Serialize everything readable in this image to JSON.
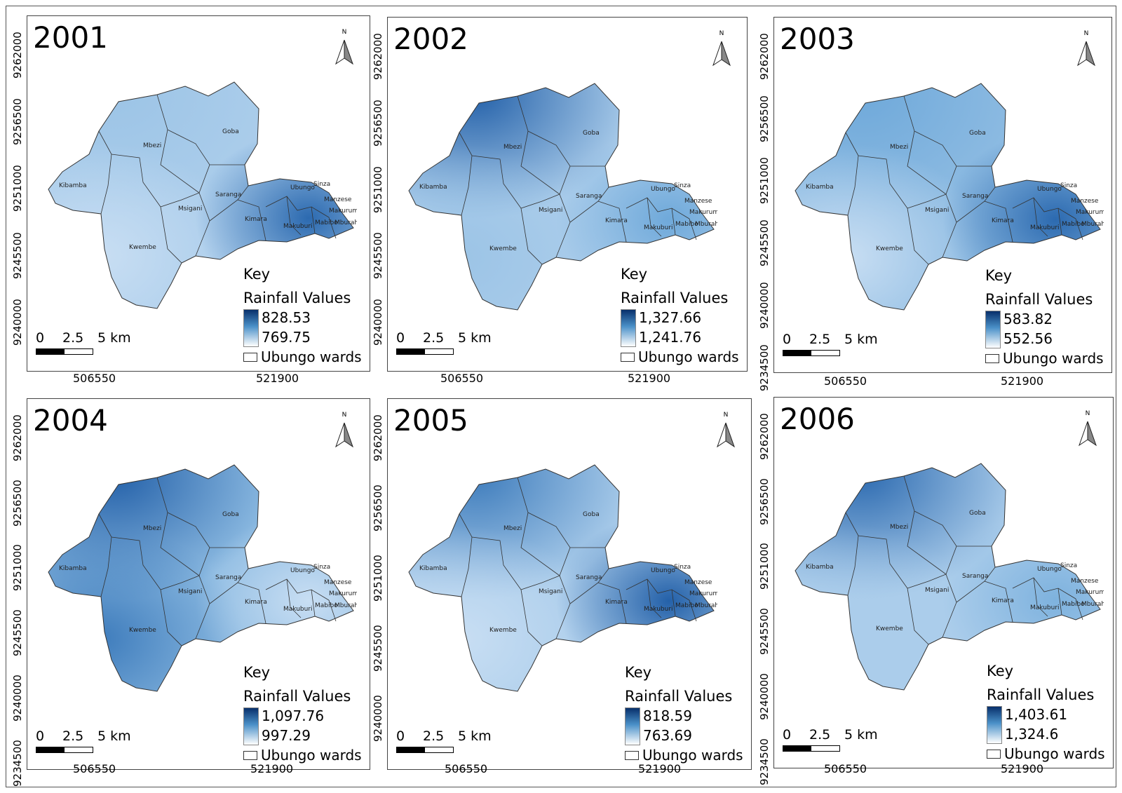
{
  "figure": {
    "north_label": "N",
    "legend_key": "Key",
    "legend_title": "Rainfall Values",
    "ward_layer_label": "Ubungo wards",
    "scale_labels": [
      "0",
      "2.5",
      "5 km"
    ],
    "x_ticks": [
      "506550",
      "521900"
    ],
    "colors": {
      "high": "#08306b",
      "mid": "#4a90c8",
      "low": "#ffffff",
      "boundary": "#333333"
    },
    "ward_names": [
      "Kibamba",
      "Mbezi",
      "Goba",
      "Kwembe",
      "Msigani",
      "Saranga",
      "Kimara",
      "Makuburi",
      "Ubungo",
      "Sinza",
      "Manzese",
      "Makurumla",
      "Mburahati",
      "Mabibo"
    ]
  },
  "panels": [
    {
      "year": "2001",
      "max": "828.53",
      "min": "769.75",
      "y_ticks": [
        "9262000",
        "9256500",
        "9251000",
        "9245500",
        "9240000"
      ]
    },
    {
      "year": "2002",
      "max": "1,327.66",
      "min": "1,241.76",
      "y_ticks": [
        "9262000",
        "9256500",
        "9251000",
        "9245500",
        "9240000"
      ]
    },
    {
      "year": "2003",
      "max": "583.82",
      "min": "552.56",
      "y_ticks": [
        "9262000",
        "9256500",
        "9251000",
        "9245500",
        "9240000",
        "9234500"
      ]
    },
    {
      "year": "2004",
      "max": "1,097.76",
      "min": "997.29",
      "y_ticks": [
        "9262000",
        "9256500",
        "9251000",
        "9245500",
        "9240000",
        "9234500"
      ]
    },
    {
      "year": "2005",
      "max": "818.59",
      "min": "763.69",
      "y_ticks": [
        "9262000",
        "9256500",
        "9251000",
        "9245500",
        "9240000"
      ]
    },
    {
      "year": "2006",
      "max": "1,403.61",
      "min": "1,324.6",
      "y_ticks": [
        "9262000",
        "9256500",
        "9251000",
        "9245500",
        "9240000",
        "9234500"
      ]
    }
  ]
}
